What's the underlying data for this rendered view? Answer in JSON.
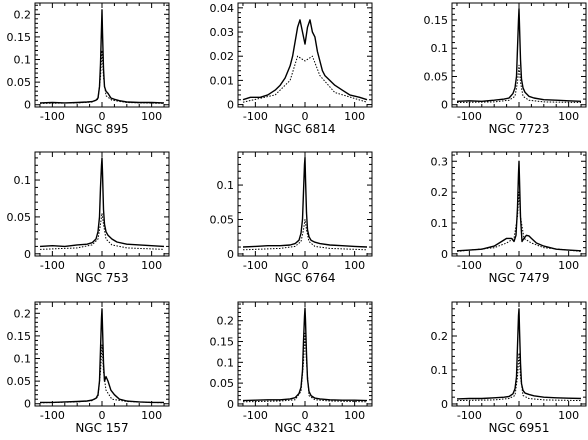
{
  "chart_data": [
    {
      "type": "line",
      "title": "",
      "xlabel": "NGC 895",
      "ylabel": "",
      "xlim": [
        -135,
        135
      ],
      "ylim": [
        -0.005,
        0.225
      ],
      "xticks": [
        -100,
        0,
        100
      ],
      "yticks": [
        0,
        0.05,
        0.1,
        0.15,
        0.2
      ],
      "ytick_labels": [
        "0",
        "0.05",
        "0.1",
        "0.15",
        "0.2"
      ],
      "series": [
        {
          "style": "solid",
          "x": [
            -125,
            -100,
            -75,
            -50,
            -30,
            -20,
            -12,
            -8,
            -5,
            -3,
            -1,
            0,
            1,
            3,
            5,
            8,
            12,
            18,
            25,
            35,
            50,
            75,
            100,
            125
          ],
          "y": [
            0.004,
            0.005,
            0.004,
            0.005,
            0.006,
            0.007,
            0.01,
            0.015,
            0.04,
            0.09,
            0.17,
            0.21,
            0.16,
            0.08,
            0.04,
            0.03,
            0.025,
            0.015,
            0.012,
            0.009,
            0.006,
            0.005,
            0.005,
            0.004
          ]
        },
        {
          "style": "dotted",
          "x": [
            -125,
            -50,
            -20,
            -8,
            -3,
            0,
            3,
            8,
            20,
            50,
            125
          ],
          "y": [
            0.003,
            0.004,
            0.006,
            0.012,
            0.06,
            0.12,
            0.06,
            0.02,
            0.01,
            0.005,
            0.003
          ]
        }
      ]
    },
    {
      "type": "line",
      "title": "",
      "xlabel": "NGC 6814",
      "ylabel": "",
      "xlim": [
        -135,
        135
      ],
      "ylim": [
        -0.001,
        0.042
      ],
      "xticks": [
        -100,
        0,
        100
      ],
      "yticks": [
        0,
        0.01,
        0.02,
        0.03,
        0.04
      ],
      "ytick_labels": [
        "0",
        "0.01",
        "0.02",
        "0.03",
        "0.04"
      ],
      "series": [
        {
          "style": "solid",
          "x": [
            -125,
            -110,
            -90,
            -75,
            -60,
            -50,
            -40,
            -30,
            -25,
            -20,
            -15,
            -10,
            -5,
            0,
            5,
            10,
            15,
            20,
            25,
            30,
            35,
            40,
            50,
            60,
            75,
            90,
            110,
            125
          ],
          "y": [
            0.002,
            0.003,
            0.003,
            0.004,
            0.006,
            0.008,
            0.011,
            0.016,
            0.02,
            0.026,
            0.032,
            0.035,
            0.03,
            0.025,
            0.032,
            0.035,
            0.03,
            0.028,
            0.022,
            0.018,
            0.014,
            0.012,
            0.01,
            0.008,
            0.006,
            0.004,
            0.003,
            0.002
          ]
        },
        {
          "style": "dotted",
          "x": [
            -125,
            -60,
            -30,
            -15,
            0,
            15,
            30,
            60,
            125
          ],
          "y": [
            0.001,
            0.004,
            0.01,
            0.02,
            0.018,
            0.02,
            0.012,
            0.005,
            0.001
          ]
        }
      ]
    },
    {
      "type": "line",
      "title": "",
      "xlabel": "NGC 7723",
      "ylabel": "",
      "xlim": [
        -135,
        135
      ],
      "ylim": [
        -0.004,
        0.18
      ],
      "xticks": [
        -100,
        0,
        100
      ],
      "yticks": [
        0,
        0.05,
        0.1,
        0.15
      ],
      "ytick_labels": [
        "0",
        "0.05",
        "0.1",
        "0.15"
      ],
      "series": [
        {
          "style": "solid",
          "x": [
            -125,
            -100,
            -75,
            -50,
            -30,
            -20,
            -12,
            -8,
            -5,
            -3,
            -1,
            0,
            1,
            3,
            5,
            8,
            12,
            20,
            30,
            50,
            75,
            100,
            125
          ],
          "y": [
            0.006,
            0.007,
            0.006,
            0.008,
            0.01,
            0.012,
            0.02,
            0.03,
            0.05,
            0.1,
            0.15,
            0.17,
            0.14,
            0.08,
            0.045,
            0.03,
            0.022,
            0.015,
            0.012,
            0.009,
            0.008,
            0.007,
            0.006
          ]
        },
        {
          "style": "dotted",
          "x": [
            -125,
            -50,
            -20,
            -8,
            -3,
            0,
            3,
            8,
            20,
            50,
            125
          ],
          "y": [
            0.004,
            0.005,
            0.008,
            0.015,
            0.04,
            0.07,
            0.04,
            0.015,
            0.008,
            0.005,
            0.004
          ]
        }
      ]
    },
    {
      "type": "line",
      "title": "",
      "xlabel": "NGC 753",
      "ylabel": "",
      "xlim": [
        -135,
        135
      ],
      "ylim": [
        -0.003,
        0.138
      ],
      "xticks": [
        -100,
        0,
        100
      ],
      "yticks": [
        0,
        0.05,
        0.1
      ],
      "ytick_labels": [
        "0",
        "0.05",
        "0.1"
      ],
      "series": [
        {
          "style": "solid",
          "x": [
            -125,
            -100,
            -75,
            -50,
            -30,
            -20,
            -12,
            -8,
            -5,
            -3,
            -1,
            0,
            1,
            3,
            5,
            8,
            12,
            20,
            30,
            50,
            75,
            100,
            125
          ],
          "y": [
            0.01,
            0.011,
            0.01,
            0.012,
            0.013,
            0.015,
            0.02,
            0.03,
            0.05,
            0.09,
            0.12,
            0.13,
            0.11,
            0.06,
            0.04,
            0.03,
            0.025,
            0.02,
            0.016,
            0.013,
            0.012,
            0.011,
            0.01
          ]
        },
        {
          "style": "dotted",
          "x": [
            -125,
            -50,
            -20,
            -8,
            -3,
            0,
            3,
            8,
            20,
            50,
            125
          ],
          "y": [
            0.006,
            0.008,
            0.012,
            0.02,
            0.04,
            0.055,
            0.04,
            0.02,
            0.012,
            0.008,
            0.006
          ]
        }
      ]
    },
    {
      "type": "line",
      "title": "",
      "xlabel": "NGC 6764",
      "ylabel": "",
      "xlim": [
        -135,
        135
      ],
      "ylim": [
        -0.003,
        0.148
      ],
      "xticks": [
        -100,
        0,
        100
      ],
      "yticks": [
        0,
        0.05,
        0.1
      ],
      "ytick_labels": [
        "0",
        "0.05",
        "0.1"
      ],
      "series": [
        {
          "style": "solid",
          "x": [
            -125,
            -100,
            -75,
            -50,
            -30,
            -20,
            -12,
            -8,
            -5,
            -3,
            -1,
            0,
            1,
            3,
            5,
            8,
            12,
            20,
            30,
            50,
            75,
            100,
            125
          ],
          "y": [
            0.01,
            0.011,
            0.012,
            0.012,
            0.013,
            0.015,
            0.02,
            0.03,
            0.05,
            0.09,
            0.13,
            0.14,
            0.11,
            0.06,
            0.035,
            0.025,
            0.02,
            0.017,
            0.015,
            0.013,
            0.012,
            0.011,
            0.01
          ]
        },
        {
          "style": "dotted",
          "x": [
            -125,
            -50,
            -20,
            -8,
            -3,
            0,
            3,
            8,
            20,
            50,
            125
          ],
          "y": [
            0.006,
            0.008,
            0.011,
            0.018,
            0.035,
            0.05,
            0.035,
            0.018,
            0.011,
            0.008,
            0.006
          ]
        }
      ]
    },
    {
      "type": "line",
      "title": "",
      "xlabel": "NGC 7479",
      "ylabel": "",
      "xlim": [
        -135,
        135
      ],
      "ylim": [
        -0.007,
        0.33
      ],
      "xticks": [
        -100,
        0,
        100
      ],
      "yticks": [
        0,
        0.1,
        0.2,
        0.3
      ],
      "ytick_labels": [
        "0",
        "0.1",
        "0.2",
        "0.3"
      ],
      "series": [
        {
          "style": "solid",
          "x": [
            -125,
            -100,
            -75,
            -50,
            -35,
            -25,
            -15,
            -10,
            -6,
            -3,
            -1,
            0,
            1,
            3,
            6,
            10,
            15,
            20,
            25,
            35,
            50,
            75,
            100,
            125
          ],
          "y": [
            0.01,
            0.012,
            0.015,
            0.025,
            0.04,
            0.05,
            0.05,
            0.04,
            0.06,
            0.15,
            0.26,
            0.3,
            0.24,
            0.12,
            0.04,
            0.05,
            0.06,
            0.058,
            0.05,
            0.035,
            0.025,
            0.015,
            0.012,
            0.01
          ]
        },
        {
          "style": "dotted",
          "x": [
            -125,
            -50,
            -25,
            -10,
            -3,
            0,
            3,
            10,
            25,
            50,
            125
          ],
          "y": [
            0.008,
            0.02,
            0.035,
            0.05,
            0.12,
            0.2,
            0.12,
            0.05,
            0.035,
            0.02,
            0.008
          ]
        }
      ]
    },
    {
      "type": "line",
      "title": "",
      "xlabel": "NGC 157",
      "ylabel": "",
      "xlim": [
        -135,
        135
      ],
      "ylim": [
        -0.005,
        0.225
      ],
      "xticks": [
        -100,
        0,
        100
      ],
      "yticks": [
        0,
        0.05,
        0.1,
        0.15,
        0.2
      ],
      "ytick_labels": [
        "0",
        "0.05",
        "0.1",
        "0.15",
        "0.2"
      ],
      "series": [
        {
          "style": "solid",
          "x": [
            -125,
            -100,
            -75,
            -50,
            -30,
            -20,
            -12,
            -8,
            -5,
            -3,
            -1,
            0,
            1,
            3,
            5,
            8,
            12,
            18,
            25,
            35,
            50,
            75,
            100,
            125
          ],
          "y": [
            0.003,
            0.003,
            0.004,
            0.005,
            0.006,
            0.008,
            0.012,
            0.02,
            0.05,
            0.12,
            0.19,
            0.21,
            0.17,
            0.09,
            0.05,
            0.06,
            0.05,
            0.03,
            0.02,
            0.01,
            0.006,
            0.004,
            0.003,
            0.003
          ]
        },
        {
          "style": "dotted",
          "x": [
            -125,
            -50,
            -20,
            -8,
            -3,
            0,
            3,
            8,
            20,
            50,
            125
          ],
          "y": [
            0.002,
            0.004,
            0.007,
            0.015,
            0.07,
            0.13,
            0.07,
            0.03,
            0.01,
            0.005,
            0.002
          ]
        }
      ]
    },
    {
      "type": "line",
      "title": "",
      "xlabel": "NGC 4321",
      "ylabel": "",
      "xlim": [
        -135,
        135
      ],
      "ylim": [
        -0.005,
        0.245
      ],
      "xticks": [
        -100,
        0,
        100
      ],
      "yticks": [
        0,
        0.05,
        0.1,
        0.15,
        0.2
      ],
      "ytick_labels": [
        "0",
        "0.05",
        "0.1",
        "0.15",
        "0.2"
      ],
      "series": [
        {
          "style": "solid",
          "x": [
            -125,
            -100,
            -75,
            -50,
            -30,
            -20,
            -12,
            -8,
            -5,
            -3,
            -1,
            0,
            1,
            3,
            5,
            8,
            12,
            20,
            30,
            50,
            75,
            100,
            125
          ],
          "y": [
            0.008,
            0.009,
            0.01,
            0.01,
            0.012,
            0.015,
            0.025,
            0.04,
            0.08,
            0.15,
            0.21,
            0.23,
            0.2,
            0.12,
            0.06,
            0.03,
            0.02,
            0.014,
            0.012,
            0.01,
            0.009,
            0.009,
            0.008
          ]
        },
        {
          "style": "dotted",
          "x": [
            -125,
            -50,
            -20,
            -8,
            -3,
            0,
            3,
            8,
            20,
            50,
            125
          ],
          "y": [
            0.005,
            0.007,
            0.01,
            0.03,
            0.1,
            0.17,
            0.1,
            0.02,
            0.01,
            0.007,
            0.005
          ]
        }
      ]
    },
    {
      "type": "line",
      "title": "",
      "xlabel": "NGC 6951",
      "ylabel": "",
      "xlim": [
        -135,
        135
      ],
      "ylim": [
        -0.006,
        0.3
      ],
      "xticks": [
        -100,
        0,
        100
      ],
      "yticks": [
        0,
        0.1,
        0.2
      ],
      "ytick_labels": [
        "0",
        "0.1",
        "0.2"
      ],
      "series": [
        {
          "style": "solid",
          "x": [
            -125,
            -100,
            -75,
            -50,
            -30,
            -20,
            -12,
            -8,
            -5,
            -3,
            -1,
            0,
            1,
            3,
            5,
            8,
            12,
            20,
            30,
            50,
            75,
            100,
            125
          ],
          "y": [
            0.015,
            0.016,
            0.016,
            0.018,
            0.02,
            0.022,
            0.03,
            0.045,
            0.08,
            0.17,
            0.26,
            0.28,
            0.22,
            0.12,
            0.06,
            0.04,
            0.032,
            0.028,
            0.024,
            0.02,
            0.018,
            0.017,
            0.016
          ]
        },
        {
          "style": "dotted",
          "x": [
            -125,
            -50,
            -20,
            -8,
            -3,
            0,
            3,
            8,
            20,
            50,
            125
          ],
          "y": [
            0.01,
            0.012,
            0.016,
            0.025,
            0.08,
            0.15,
            0.08,
            0.025,
            0.016,
            0.012,
            0.01
          ]
        }
      ]
    }
  ]
}
